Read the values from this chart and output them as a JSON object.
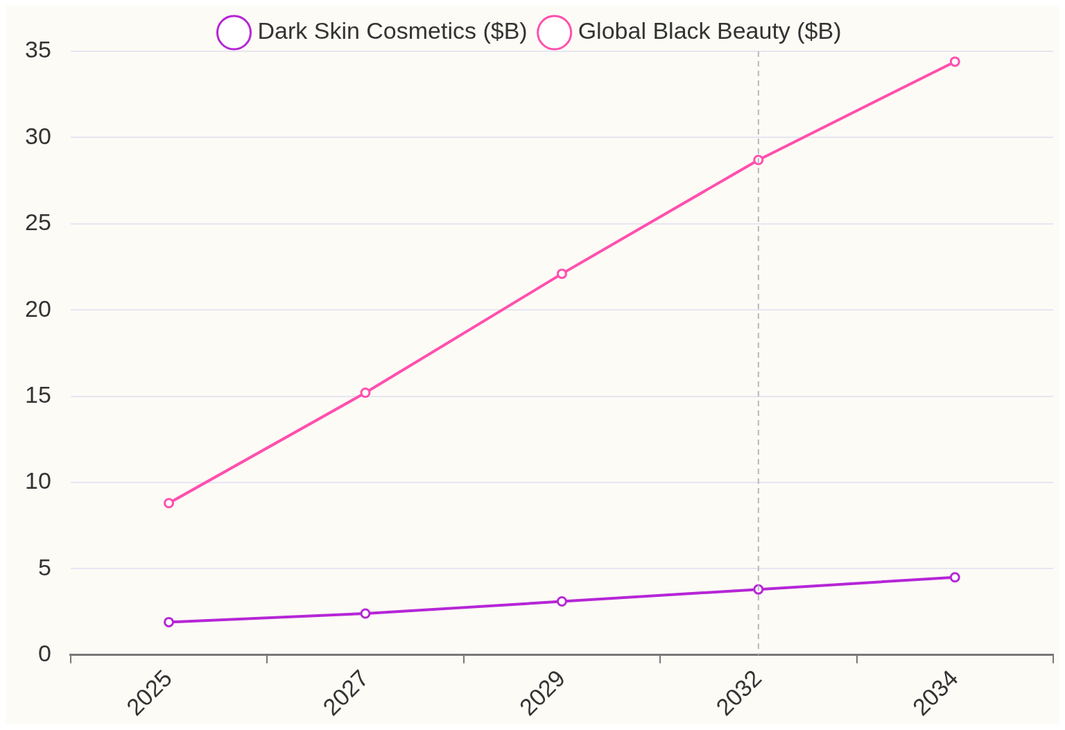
{
  "chart_data": {
    "type": "line",
    "categories": [
      "2025",
      "2027",
      "2029",
      "2032",
      "2034"
    ],
    "series": [
      {
        "name": "Dark Skin Cosmetics ($B)",
        "color": "#b526d6",
        "values": [
          1.9,
          2.4,
          3.1,
          3.8,
          4.5
        ]
      },
      {
        "name": "Global Black Beauty ($B)",
        "color": "#ff4fae",
        "values": [
          8.8,
          15.2,
          22.1,
          28.7,
          34.4
        ]
      }
    ],
    "ylim": [
      0,
      35
    ],
    "yticks": [
      0,
      5,
      10,
      15,
      20,
      25,
      30,
      35
    ],
    "grid": "y",
    "legend": "top",
    "marker": "circle",
    "line_style": "solid",
    "ref_lines": [
      {
        "axis": "x",
        "value": "2032",
        "color": "#b8b8c0",
        "line_style": "dashed"
      }
    ]
  }
}
